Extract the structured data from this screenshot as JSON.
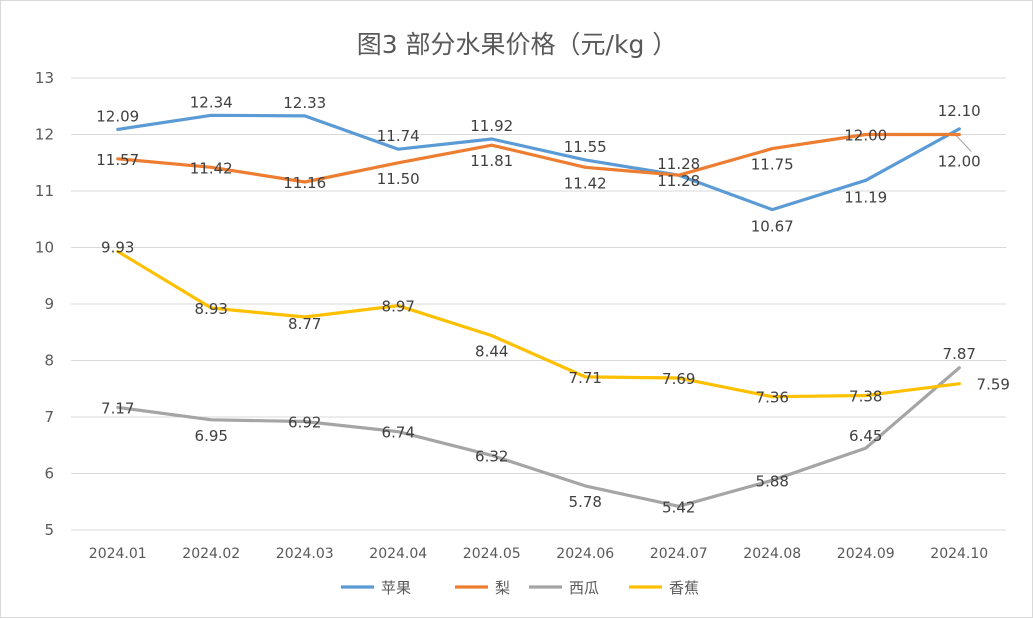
{
  "chart_data": {
    "type": "line",
    "title": "图3  部分水果价格（元/kg ）",
    "categories": [
      "2024.01",
      "2024.02",
      "2024.03",
      "2024.04",
      "2024.05",
      "2024.06",
      "2024.07",
      "2024.08",
      "2024.09",
      "2024.10"
    ],
    "ylim": [
      5,
      13
    ],
    "yticks": [
      "5",
      "6",
      "7",
      "8",
      "9",
      "10",
      "11",
      "12",
      "13"
    ],
    "grid": true,
    "legend_position": "bottom",
    "series": [
      {
        "name": "苹果",
        "color": "#5B9BD5",
        "values": [
          12.09,
          12.34,
          12.33,
          11.74,
          11.92,
          11.55,
          11.28,
          10.67,
          11.19,
          12.1
        ],
        "labels": [
          "12.09",
          "12.34",
          "12.33",
          "11.74",
          "11.92",
          "11.55",
          "11.28",
          "10.67",
          "11.19",
          "12.10"
        ]
      },
      {
        "name": "梨",
        "color": "#ED7D31",
        "values": [
          11.57,
          11.42,
          11.16,
          11.5,
          11.81,
          11.42,
          11.28,
          11.75,
          12.0,
          12.0
        ],
        "labels": [
          "11.57",
          "11.42",
          "11.16",
          "11.50",
          "11.81",
          "11.42",
          "11.28",
          "11.75",
          "12.00",
          "12.00"
        ]
      },
      {
        "name": "西瓜",
        "color": "#A5A5A5",
        "values": [
          7.17,
          6.95,
          6.92,
          6.74,
          6.32,
          5.78,
          5.42,
          5.88,
          6.45,
          7.87
        ],
        "labels": [
          "7.17",
          "6.95",
          "6.92",
          "6.74",
          "6.32",
          "5.78",
          "5.42",
          "5.88",
          "6.45",
          "7.87"
        ]
      },
      {
        "name": "香蕉",
        "color": "#FFC000",
        "values": [
          9.93,
          8.93,
          8.77,
          8.97,
          8.44,
          7.71,
          7.69,
          7.36,
          7.38,
          7.59
        ],
        "labels": [
          "9.93",
          "8.93",
          "8.77",
          "8.97",
          "8.44",
          "7.71",
          "7.69",
          "7.36",
          "7.38",
          "7.59"
        ]
      }
    ]
  }
}
